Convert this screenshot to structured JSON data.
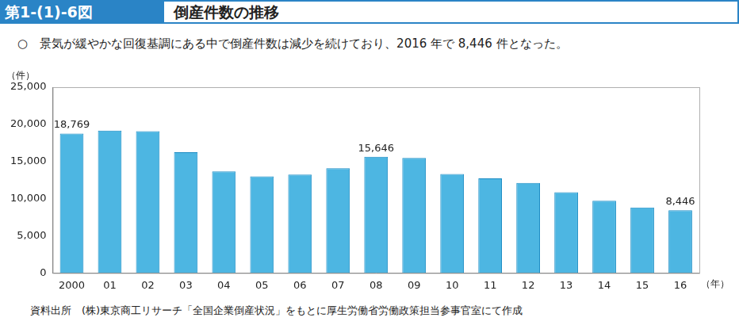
{
  "figure_number": "第1-(1)-6図",
  "source": "資料出所　(株)東京商工リサーチ「全国企業倒産状況」をもとに厚生労働省労働政策担当参事官室にて作成",
  "chart_data": {
    "type": "bar",
    "title": "倒産件数の推移",
    "subtitle": "○　景気が緩やかな回復基調にある中で倒産件数は減少を続けており、2016 年で 8,446 件となった。",
    "y_label": "（件）",
    "x_label": "（年）",
    "categories": [
      "2000",
      "01",
      "02",
      "03",
      "04",
      "05",
      "06",
      "07",
      "08",
      "09",
      "10",
      "11",
      "12",
      "13",
      "14",
      "15",
      "16"
    ],
    "values": [
      18769,
      19164,
      19087,
      16255,
      13679,
      12998,
      13245,
      14091,
      15646,
      15480,
      13321,
      12734,
      12124,
      10855,
      9731,
      8812,
      8446
    ],
    "color": "#4db6e2",
    "ylim": [
      0,
      25000
    ],
    "yticks": [
      0,
      {
        "value": 5000,
        "label": "5,000"
      },
      {
        "value": 10000,
        "label": "10,000"
      },
      {
        "value": 15000,
        "label": "15,000"
      },
      {
        "value": 20000,
        "label": "20,000"
      },
      {
        "value": 25000,
        "label": "25,000"
      }
    ],
    "grid": false,
    "annotations": [
      {
        "x": "2000",
        "value": 18769,
        "label": "18,769"
      },
      {
        "x": "08",
        "value": 15646,
        "label": "15,646"
      },
      {
        "x": "16",
        "value": 8446,
        "label": "8,446"
      }
    ]
  }
}
